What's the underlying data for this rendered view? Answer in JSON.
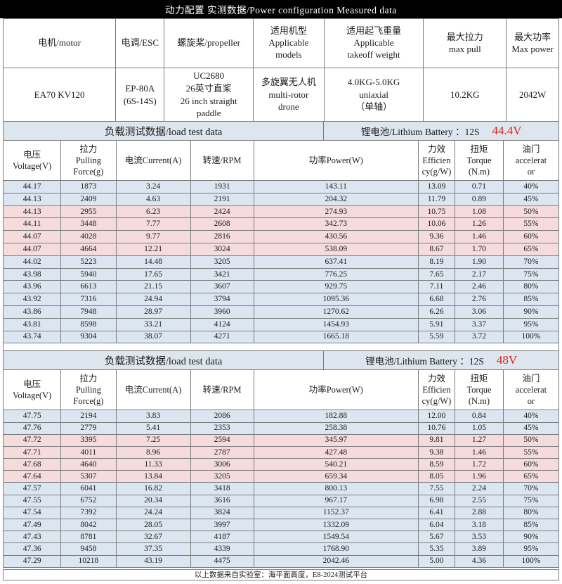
{
  "title": "动力配置 实测数据/Power configuration Measured data",
  "colors": {
    "bar_bg": "#dde5ee",
    "blue_row": "#dce6f0",
    "pink_row": "#f5dbdb",
    "accent_red": "#e1251b"
  },
  "spec_table": {
    "headers": [
      "电机/motor",
      "电调/ESC",
      "螺旋桨/propeller",
      "适用机型\nApplicable\nmodels",
      "适用起飞重量\nApplicable\ntakeoff weight",
      "最大拉力\nmax pull",
      "最大功率\nMax power"
    ],
    "values": [
      "EA70 KV120",
      "EP-80A\n(6S-14S)",
      "UC2680\n26英寸直桨\n26 inch straight\npaddle",
      "多旋翼无人机\nmulti-rotor\ndrone",
      "4.0KG-5.0KG\nuniaxial\n（单轴）",
      "10.2KG",
      "2042W"
    ]
  },
  "load_tables": [
    {
      "section_label": "负载测试数据/load test data",
      "battery_label": "锂电池/Lithium Battery ：12S",
      "battery_voltage": "44.4V",
      "columns": [
        "电压\nVoltage(V)",
        "拉力\nPulling\nForce(g)",
        "电流Current(A)",
        "转速/RPM",
        "功率Power(W)",
        "力效\nEfficien\ncy(g/W)",
        "扭矩\nTorque\n(N.m)",
        "油门\naccelerat\nor"
      ],
      "rows": [
        {
          "tone": "blue",
          "cells": [
            "44.17",
            "1873",
            "3.24",
            "1931",
            "143.11",
            "13.09",
            "0.71",
            "40%"
          ]
        },
        {
          "tone": "blue",
          "cells": [
            "44.13",
            "2409",
            "4.63",
            "2191",
            "204.32",
            "11.79",
            "0.89",
            "45%"
          ]
        },
        {
          "tone": "pink",
          "cells": [
            "44.13",
            "2955",
            "6.23",
            "2424",
            "274.93",
            "10.75",
            "1.08",
            "50%"
          ]
        },
        {
          "tone": "pink",
          "cells": [
            "44.11",
            "3448",
            "7.77",
            "2608",
            "342.73",
            "10.06",
            "1.26",
            "55%"
          ]
        },
        {
          "tone": "pink",
          "cells": [
            "44.07",
            "4028",
            "9.77",
            "2816",
            "430.56",
            "9.36",
            "1.46",
            "60%"
          ]
        },
        {
          "tone": "pink",
          "cells": [
            "44.07",
            "4664",
            "12.21",
            "3024",
            "538.09",
            "8.67",
            "1.70",
            "65%"
          ]
        },
        {
          "tone": "blue",
          "cells": [
            "44.02",
            "5223",
            "14.48",
            "3205",
            "637.41",
            "8.19",
            "1.90",
            "70%"
          ]
        },
        {
          "tone": "blue",
          "cells": [
            "43.98",
            "5940",
            "17.65",
            "3421",
            "776.25",
            "7.65",
            "2.17",
            "75%"
          ]
        },
        {
          "tone": "blue",
          "cells": [
            "43.96",
            "6613",
            "21.15",
            "3607",
            "929.75",
            "7.11",
            "2.46",
            "80%"
          ]
        },
        {
          "tone": "blue",
          "cells": [
            "43.92",
            "7316",
            "24.94",
            "3794",
            "1095.36",
            "6.68",
            "2.76",
            "85%"
          ]
        },
        {
          "tone": "blue",
          "cells": [
            "43.86",
            "7948",
            "28.97",
            "3960",
            "1270.62",
            "6.26",
            "3.06",
            "90%"
          ]
        },
        {
          "tone": "blue",
          "cells": [
            "43.81",
            "8598",
            "33.21",
            "4124",
            "1454.93",
            "5.91",
            "3.37",
            "95%"
          ]
        },
        {
          "tone": "blue",
          "cells": [
            "43.74",
            "9304",
            "38.07",
            "4271",
            "1665.18",
            "5.59",
            "3.72",
            "100%"
          ]
        }
      ]
    },
    {
      "section_label": "负载测试数据/load test data",
      "battery_label": "锂电池/Lithium Battery ：12S",
      "battery_voltage": "48V",
      "columns": [
        "电压\nVoltage(V)",
        "拉力\nPulling\nForce(g)",
        "电流Current(A)",
        "转速/RPM",
        "功率Power(W)",
        "力效\nEfficien\ncy(g/W)",
        "扭矩\nTorque\n(N.m)",
        "油门\naccelerat\nor"
      ],
      "rows": [
        {
          "tone": "blue",
          "cells": [
            "47.75",
            "2194",
            "3.83",
            "2086",
            "182.88",
            "12.00",
            "0.84",
            "40%"
          ]
        },
        {
          "tone": "blue",
          "cells": [
            "47.76",
            "2779",
            "5.41",
            "2353",
            "258.38",
            "10.76",
            "1.05",
            "45%"
          ]
        },
        {
          "tone": "pink",
          "cells": [
            "47.72",
            "3395",
            "7.25",
            "2594",
            "345.97",
            "9.81",
            "1.27",
            "50%"
          ]
        },
        {
          "tone": "pink",
          "cells": [
            "47.71",
            "4011",
            "8.96",
            "2787",
            "427.48",
            "9.38",
            "1.46",
            "55%"
          ]
        },
        {
          "tone": "pink",
          "cells": [
            "47.68",
            "4640",
            "11.33",
            "3006",
            "540.21",
            "8.59",
            "1.72",
            "60%"
          ]
        },
        {
          "tone": "pink",
          "cells": [
            "47.64",
            "5307",
            "13.84",
            "3205",
            "659.34",
            "8.05",
            "1.96",
            "65%"
          ]
        },
        {
          "tone": "blue",
          "cells": [
            "47.57",
            "6041",
            "16.82",
            "3418",
            "800.13",
            "7.55",
            "2.24",
            "70%"
          ]
        },
        {
          "tone": "blue",
          "cells": [
            "47.55",
            "6752",
            "20.34",
            "3616",
            "967.17",
            "6.98",
            "2.55",
            "75%"
          ]
        },
        {
          "tone": "blue",
          "cells": [
            "47.54",
            "7392",
            "24.24",
            "3824",
            "1152.37",
            "6.41",
            "2.88",
            "80%"
          ]
        },
        {
          "tone": "blue",
          "cells": [
            "47.49",
            "8042",
            "28.05",
            "3997",
            "1332.09",
            "6.04",
            "3.18",
            "85%"
          ]
        },
        {
          "tone": "blue",
          "cells": [
            "47.43",
            "8781",
            "32.67",
            "4187",
            "1549.54",
            "5.67",
            "3.53",
            "90%"
          ]
        },
        {
          "tone": "blue",
          "cells": [
            "47.36",
            "9458",
            "37.35",
            "4339",
            "1768.90",
            "5.35",
            "3.89",
            "95%"
          ]
        },
        {
          "tone": "blue",
          "cells": [
            "47.29",
            "10218",
            "43.19",
            "4475",
            "2042.46",
            "5.00",
            "4.36",
            "100%"
          ]
        }
      ]
    }
  ],
  "footer": "以上数据来自实验室：海平面高度，E8-2024测试平台"
}
